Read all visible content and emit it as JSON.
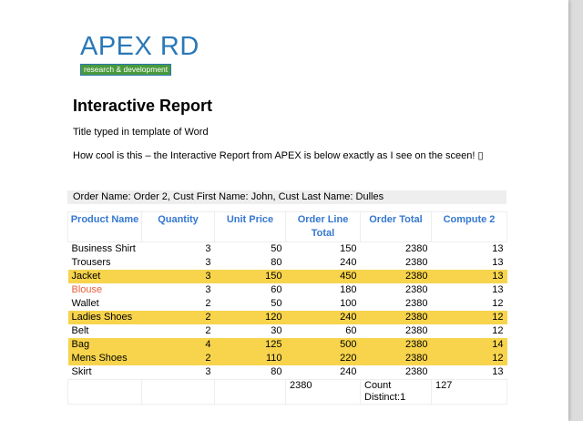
{
  "logo": {
    "name": "APEX RD",
    "tagline": "research & development"
  },
  "title": "Interactive Report",
  "paragraphs": [
    "Title typed in template of Word",
    "How cool is this – the Interactive Report from APEX is below exactly as I see on the sceen! ▯"
  ],
  "group_header": "Order Name: Order 2, Cust First Name: John, Cust Last Name: Dulles",
  "table": {
    "headers": [
      "Product Name",
      "Quantity",
      "Unit Price",
      "Order Line Total",
      "Order Total",
      "Compute 2"
    ],
    "rows": [
      {
        "cells": [
          "Business Shirt",
          3,
          50,
          150,
          2380,
          13
        ]
      },
      {
        "cells": [
          "Trousers",
          3,
          80,
          240,
          2380,
          13
        ]
      },
      {
        "cells": [
          "Jacket",
          3,
          150,
          450,
          2380,
          13
        ],
        "highlight": "#f7d44c"
      },
      {
        "cells": [
          "Blouse",
          3,
          60,
          180,
          2380,
          13
        ],
        "name_color": "#e8603c"
      },
      {
        "cells": [
          "Wallet",
          2,
          50,
          100,
          2380,
          12
        ]
      },
      {
        "cells": [
          "Ladies Shoes",
          2,
          120,
          240,
          2380,
          12
        ],
        "highlight": "#f7d44c"
      },
      {
        "cells": [
          "Belt",
          2,
          30,
          60,
          2380,
          12
        ]
      },
      {
        "cells": [
          "Bag",
          4,
          125,
          500,
          2380,
          14
        ],
        "highlight": "#f7d44c"
      },
      {
        "cells": [
          "Mens Shoes",
          2,
          110,
          220,
          2380,
          12
        ],
        "highlight": "#f7d44c"
      },
      {
        "cells": [
          "Skirt",
          3,
          80,
          240,
          2380,
          13
        ]
      }
    ],
    "footer": {
      "order_line_total": 2380,
      "order_total": "Count Distinct:1",
      "compute_2": 127
    }
  }
}
